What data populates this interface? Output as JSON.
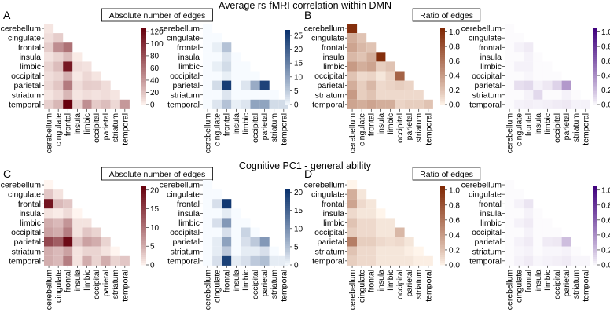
{
  "figure": {
    "title_top": "Average rs-fMRI correlation within DMN",
    "title_bottom": "Cognitive PC1  - general ability"
  },
  "regions": [
    "cerebellum",
    "cingulate",
    "frontal",
    "insula",
    "limbic",
    "occipital",
    "parietal",
    "striatum",
    "temporal"
  ],
  "colors": {
    "reds_low": "#fff5f0",
    "reds_high": "#67000d",
    "blues_low": "#f7fbff",
    "blues_high": "#08306b",
    "oranges_low": "#fff5eb",
    "oranges_high": "#7f2704",
    "purples_low": "#fcfbfd",
    "purples_high": "#3f007d"
  },
  "chart_data": [
    {
      "type": "heatmap",
      "panel": "A",
      "label": "A",
      "boxed_title": "Absolute number of edges",
      "cmap": "reds",
      "vmin": 0,
      "vmax": 125,
      "colorbar_ticks": [
        0,
        20,
        40,
        60,
        80,
        100,
        120
      ],
      "colorbar_tick_labels": [
        "0",
        "20",
        "40",
        "60",
        "80",
        "100",
        "120"
      ],
      "matrix": [
        [
          5
        ],
        [
          8,
          15
        ],
        [
          15,
          45,
          60
        ],
        [
          6,
          12,
          22,
          3
        ],
        [
          12,
          22,
          110,
          8,
          6
        ],
        [
          8,
          12,
          28,
          4,
          10,
          5
        ],
        [
          10,
          18,
          55,
          8,
          15,
          14,
          8
        ],
        [
          5,
          10,
          25,
          5,
          8,
          6,
          8,
          5
        ],
        [
          14,
          25,
          125,
          12,
          45,
          16,
          22,
          10,
          40
        ]
      ]
    },
    {
      "type": "heatmap",
      "panel": "A-right",
      "label": "",
      "boxed_title": "",
      "cmap": "blues",
      "vmin": 0,
      "vmax": 27,
      "colorbar_ticks": [
        0,
        5,
        10,
        15,
        20,
        25
      ],
      "colorbar_tick_labels": [
        "0",
        "5",
        "10",
        "15",
        "20",
        "25"
      ],
      "matrix": [
        [
          0
        ],
        [
          0,
          0
        ],
        [
          0,
          1,
          6
        ],
        [
          0,
          0,
          2,
          0
        ],
        [
          0,
          1,
          3,
          0,
          0
        ],
        [
          0,
          0,
          1,
          0,
          0,
          0
        ],
        [
          0,
          3,
          25,
          0,
          2,
          9,
          24
        ],
        [
          0,
          0,
          2,
          0,
          0,
          0,
          0,
          0
        ],
        [
          0,
          2,
          6,
          1,
          2,
          10,
          10,
          3,
          3
        ]
      ]
    },
    {
      "type": "heatmap",
      "panel": "B",
      "label": "B",
      "boxed_title": "Ratio of edges",
      "cmap": "oranges",
      "vmin": 0,
      "vmax": 1.05,
      "colorbar_ticks": [
        0,
        0.2,
        0.4,
        0.6,
        0.8,
        1.0
      ],
      "colorbar_tick_labels": [
        "0.0",
        "0.2",
        "0.4",
        "0.6",
        "0.8",
        "1.0"
      ],
      "matrix": [
        [
          1.0
        ],
        [
          0.3,
          0.2
        ],
        [
          0.35,
          0.25,
          0.2
        ],
        [
          0.25,
          0.2,
          0.3,
          1.0
        ],
        [
          0.4,
          0.3,
          0.35,
          0.15,
          0.2
        ],
        [
          0.2,
          0.1,
          0.12,
          0.05,
          0.12,
          0.7
        ],
        [
          0.3,
          0.15,
          0.25,
          0.1,
          0.12,
          0.15,
          0.12
        ],
        [
          0.4,
          0.15,
          0.2,
          0.1,
          0.1,
          0.1,
          0.1,
          0.1
        ],
        [
          0.35,
          0.3,
          0.35,
          0.3,
          0.3,
          0.12,
          0.15,
          0.15,
          0.2
        ]
      ]
    },
    {
      "type": "heatmap",
      "panel": "B-right",
      "label": "",
      "boxed_title": "",
      "cmap": "purples",
      "vmin": 0,
      "vmax": 1.05,
      "colorbar_ticks": [
        0,
        0.2,
        0.4,
        0.6,
        0.8,
        1.0
      ],
      "colorbar_tick_labels": [
        "0.0",
        "0.2",
        "0.4",
        "0.6",
        "0.8",
        "1.0"
      ],
      "matrix": [
        [
          0
        ],
        [
          0,
          0
        ],
        [
          0,
          0.02,
          0.04
        ],
        [
          0,
          0,
          0.02,
          0
        ],
        [
          0,
          0.02,
          0.02,
          0,
          0
        ],
        [
          0,
          0,
          0.01,
          0,
          0,
          0
        ],
        [
          0,
          0.08,
          0.1,
          0.02,
          0.05,
          0.12,
          0.35
        ],
        [
          0,
          0,
          0.02,
          0.1,
          0,
          0,
          0.02,
          0
        ],
        [
          0,
          0.02,
          0.03,
          0.02,
          0.03,
          0.04,
          0.05,
          0.02,
          0.02
        ]
      ]
    },
    {
      "type": "heatmap",
      "panel": "C",
      "label": "C",
      "boxed_title": "Absolute number of edges",
      "cmap": "reds",
      "vmin": 0,
      "vmax": 21,
      "colorbar_ticks": [
        0,
        5,
        10,
        15,
        20
      ],
      "colorbar_tick_labels": [
        "0",
        "5",
        "10",
        "15",
        "20"
      ],
      "matrix": [
        [
          0
        ],
        [
          3,
          1
        ],
        [
          19,
          4,
          3
        ],
        [
          1,
          0.5,
          1.5,
          0
        ],
        [
          5,
          4,
          7,
          1,
          1
        ],
        [
          6,
          5,
          9,
          1,
          3,
          2
        ],
        [
          14,
          12,
          20,
          3,
          6,
          5,
          2
        ],
        [
          5,
          4,
          6,
          1,
          2,
          2,
          1,
          0
        ],
        [
          5,
          4,
          9,
          1,
          5,
          2,
          5,
          2,
          3
        ]
      ]
    },
    {
      "type": "heatmap",
      "panel": "C-right",
      "label": "",
      "boxed_title": "",
      "cmap": "blues",
      "vmin": 0,
      "vmax": 21,
      "colorbar_ticks": [
        0,
        5,
        10,
        15,
        20
      ],
      "colorbar_tick_labels": [
        "0",
        "5",
        "10",
        "15",
        "20"
      ],
      "matrix": [
        [
          0
        ],
        [
          0,
          0
        ],
        [
          0,
          2,
          20
        ],
        [
          0,
          0,
          1,
          0
        ],
        [
          0,
          2,
          9,
          0,
          0
        ],
        [
          0,
          0,
          2,
          0,
          3,
          0
        ],
        [
          0,
          1,
          8,
          0,
          2,
          4,
          9
        ],
        [
          0,
          1,
          4,
          0,
          1,
          1,
          2,
          0
        ],
        [
          0,
          2,
          19,
          1,
          2,
          4,
          5,
          1,
          1
        ]
      ]
    },
    {
      "type": "heatmap",
      "panel": "D",
      "label": "D",
      "boxed_title": "Ratio of edges",
      "cmap": "oranges",
      "vmin": 0,
      "vmax": 1.05,
      "colorbar_ticks": [
        0,
        0.2,
        0.4,
        0.6,
        0.8,
        1.0
      ],
      "colorbar_tick_labels": [
        "0.0",
        "0.2",
        "0.4",
        "0.6",
        "0.8",
        "1.0"
      ],
      "matrix": [
        [
          0
        ],
        [
          0.3,
          0.05
        ],
        [
          0.35,
          0.1,
          0.05
        ],
        [
          0.1,
          0.05,
          0.05,
          0
        ],
        [
          0.2,
          0.1,
          0.1,
          0.05,
          0.05
        ],
        [
          0.15,
          0.1,
          0.1,
          0.05,
          0.05,
          0.25
        ],
        [
          0.55,
          0.15,
          0.15,
          0.1,
          0.08,
          0.1,
          0.05
        ],
        [
          0.2,
          0.1,
          0.1,
          0.05,
          0.05,
          0.05,
          0.02,
          0
        ],
        [
          0.15,
          0.1,
          0.1,
          0.05,
          0.05,
          0.05,
          0.05,
          0.02,
          0.02
        ]
      ]
    },
    {
      "type": "heatmap",
      "panel": "D-right",
      "label": "",
      "boxed_title": "",
      "cmap": "purples",
      "vmin": 0,
      "vmax": 1.05,
      "colorbar_ticks": [
        0,
        0.2,
        0.4,
        0.6,
        0.8,
        1.0
      ],
      "colorbar_tick_labels": [
        "0.0",
        "0.2",
        "0.4",
        "0.6",
        "0.8",
        "1.0"
      ],
      "matrix": [
        [
          0
        ],
        [
          0,
          0
        ],
        [
          0,
          0.02,
          0.06
        ],
        [
          0,
          0,
          0.02,
          0
        ],
        [
          0,
          0.02,
          0.04,
          0,
          0
        ],
        [
          0,
          0,
          0.02,
          0,
          0,
          0
        ],
        [
          0,
          0.02,
          0.04,
          0,
          0.04,
          0.05,
          0.2
        ],
        [
          0,
          0.01,
          0.02,
          0,
          0.01,
          0.01,
          0.02,
          0
        ],
        [
          0,
          0.02,
          0.04,
          0.01,
          0.02,
          0.03,
          0.04,
          0.01,
          0.01
        ]
      ]
    }
  ]
}
